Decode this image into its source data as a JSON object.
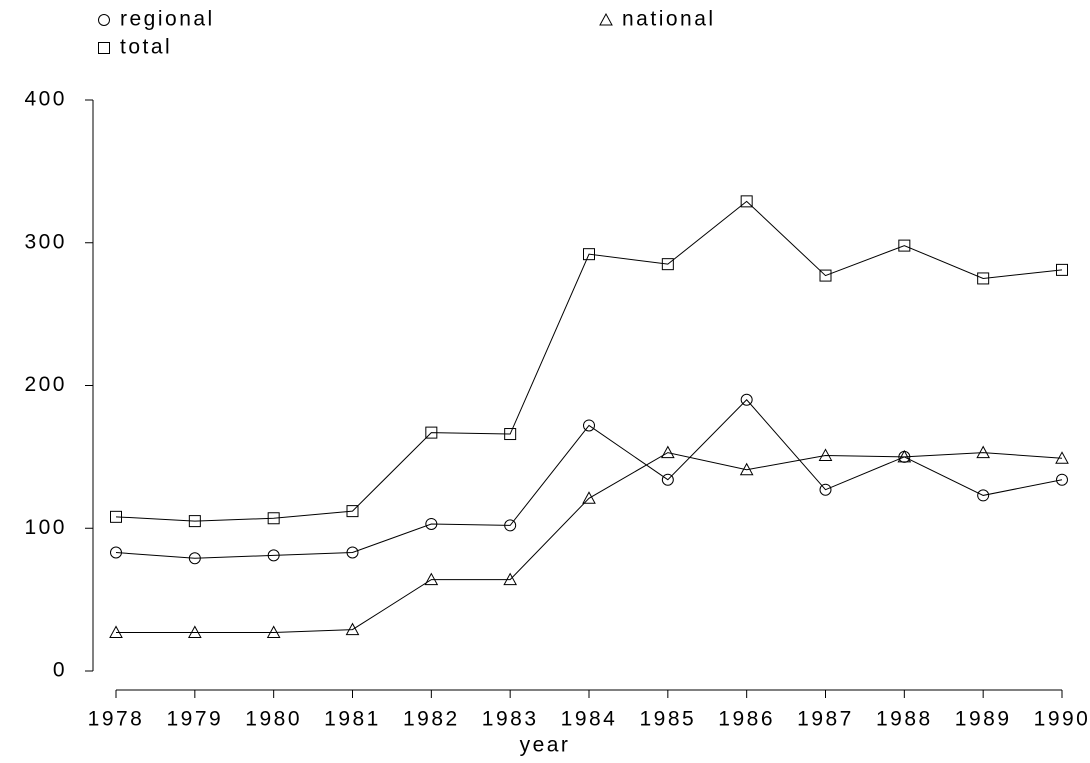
{
  "chart_data": {
    "type": "line",
    "xlabel": "year",
    "x": [
      1978,
      1979,
      1980,
      1981,
      1982,
      1983,
      1984,
      1985,
      1986,
      1987,
      1988,
      1989,
      1990
    ],
    "series": [
      {
        "name": "regional",
        "color": "#000000",
        "marker": "circle",
        "values": [
          83,
          79,
          81,
          83,
          103,
          102,
          172,
          134,
          190,
          127,
          150,
          123,
          134
        ]
      },
      {
        "name": "national",
        "color": "#000000",
        "marker": "triangle",
        "values": [
          27,
          27,
          27,
          29,
          64,
          64,
          121,
          153,
          141,
          151,
          150,
          153,
          149
        ]
      },
      {
        "name": "total",
        "color": "#000000",
        "marker": "square",
        "values": [
          108,
          105,
          107,
          112,
          167,
          166,
          292,
          285,
          329,
          277,
          298,
          275,
          281
        ]
      }
    ],
    "xlim": [
      1978,
      1990
    ],
    "xticks": [
      1978,
      1979,
      1980,
      1981,
      1982,
      1983,
      1984,
      1985,
      1986,
      1987,
      1988,
      1989,
      1990
    ],
    "ylim": [
      0,
      400
    ],
    "yticks": [
      0,
      100,
      200,
      300,
      400
    ],
    "grid": false,
    "legend": "top"
  }
}
